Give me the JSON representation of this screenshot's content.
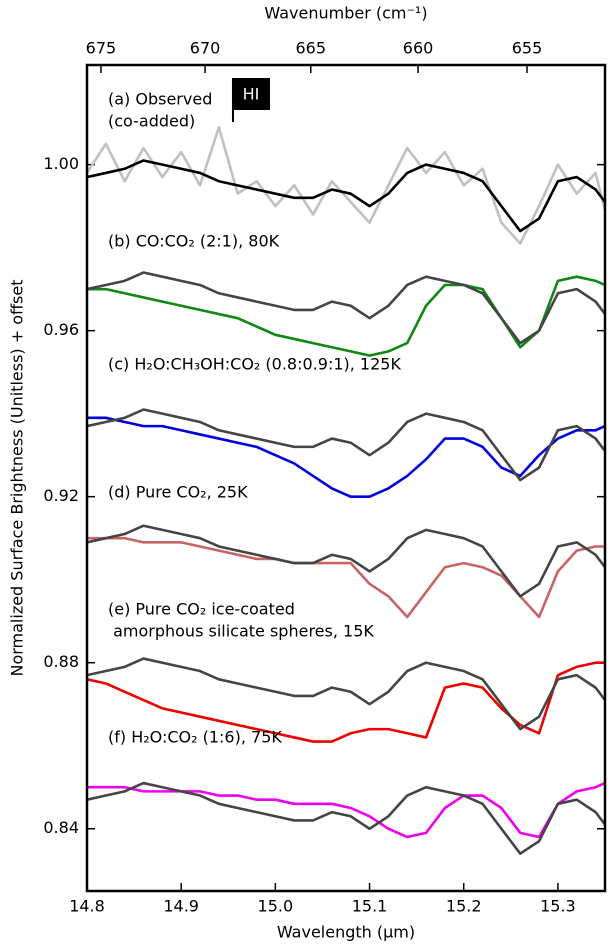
{
  "chart_data": {
    "type": "line",
    "xlabel": "Wavelength (μm)",
    "ylabel": "Normalized Surface Brightness (Unitless) + offset",
    "x2label": "Wavenumber (cm⁻¹)",
    "x2_scale": "reciprocal",
    "xlim": [
      14.8,
      15.35
    ],
    "ylim": [
      0.825,
      1.024
    ],
    "xticks": [
      14.8,
      14.9,
      {
        "value": 15,
        "label": "15.0"
      },
      15.1,
      15.2,
      15.3
    ],
    "x2ticks": [
      675,
      670,
      665,
      660,
      655
    ],
    "yticks": [
      0.84,
      0.88,
      0.92,
      0.96,
      {
        "value": 1,
        "label": "1.00"
      }
    ],
    "x": [
      14.8,
      14.82,
      14.84,
      14.86,
      14.88,
      14.9,
      14.92,
      14.94,
      14.96,
      14.98,
      15.0,
      15.02,
      15.04,
      15.06,
      15.08,
      15.1,
      15.12,
      15.14,
      15.16,
      15.18,
      15.2,
      15.22,
      15.24,
      15.26,
      15.28,
      15.3,
      15.32,
      15.34,
      15.35
    ],
    "series": [
      {
        "color": "#c0c0c0",
        "values": [
          0.998,
          1.005,
          0.996,
          1.004,
          0.997,
          1.003,
          0.995,
          1.009,
          0.993,
          0.996,
          0.99,
          0.995,
          0.988,
          0.996,
          0.991,
          0.986,
          0.995,
          1.004,
          0.998,
          1.003,
          0.995,
          0.999,
          0.986,
          0.981,
          0.99,
          1.0,
          0.993,
          0.998,
          0.989
        ]
      },
      {
        "color": "#000000",
        "values": [
          0.997,
          0.998,
          0.999,
          1.001,
          1.0,
          0.999,
          0.998,
          0.996,
          0.995,
          0.994,
          0.993,
          0.992,
          0.992,
          0.994,
          0.993,
          0.99,
          0.993,
          0.998,
          1.0,
          0.999,
          0.998,
          0.996,
          0.99,
          0.984,
          0.987,
          0.996,
          0.997,
          0.994,
          0.991
        ]
      },
      {
        "color": "#118811",
        "values": [
          0.97,
          0.97,
          0.969,
          0.968,
          0.967,
          0.966,
          0.965,
          0.964,
          0.963,
          0.961,
          0.959,
          0.958,
          0.957,
          0.956,
          0.955,
          0.954,
          0.955,
          0.957,
          0.966,
          0.971,
          0.971,
          0.97,
          0.963,
          0.956,
          0.96,
          0.972,
          0.973,
          0.972,
          0.971
        ]
      },
      {
        "color": "#454545",
        "values": [
          0.97,
          0.971,
          0.972,
          0.974,
          0.973,
          0.972,
          0.971,
          0.969,
          0.968,
          0.967,
          0.966,
          0.965,
          0.965,
          0.967,
          0.966,
          0.963,
          0.966,
          0.971,
          0.973,
          0.972,
          0.971,
          0.969,
          0.963,
          0.957,
          0.96,
          0.969,
          0.97,
          0.967,
          0.964
        ]
      },
      {
        "color": "#0000dd",
        "values": [
          0.939,
          0.939,
          0.938,
          0.937,
          0.937,
          0.936,
          0.935,
          0.934,
          0.933,
          0.932,
          0.93,
          0.928,
          0.925,
          0.922,
          0.92,
          0.92,
          0.922,
          0.925,
          0.929,
          0.934,
          0.934,
          0.932,
          0.927,
          0.925,
          0.93,
          0.934,
          0.936,
          0.936,
          0.937
        ]
      },
      {
        "color": "#454545",
        "values": [
          0.937,
          0.938,
          0.939,
          0.941,
          0.94,
          0.939,
          0.938,
          0.936,
          0.935,
          0.934,
          0.933,
          0.932,
          0.932,
          0.934,
          0.933,
          0.93,
          0.933,
          0.938,
          0.94,
          0.939,
          0.938,
          0.936,
          0.93,
          0.924,
          0.927,
          0.936,
          0.937,
          0.934,
          0.931
        ]
      },
      {
        "color": "#c86464",
        "values": [
          0.91,
          0.91,
          0.91,
          0.909,
          0.909,
          0.909,
          0.908,
          0.907,
          0.906,
          0.905,
          0.905,
          0.904,
          0.904,
          0.904,
          0.904,
          0.899,
          0.896,
          0.891,
          0.897,
          0.903,
          0.904,
          0.903,
          0.901,
          0.896,
          0.891,
          0.902,
          0.907,
          0.908,
          0.908
        ]
      },
      {
        "color": "#454545",
        "values": [
          0.909,
          0.91,
          0.911,
          0.913,
          0.912,
          0.911,
          0.91,
          0.908,
          0.907,
          0.906,
          0.905,
          0.904,
          0.904,
          0.906,
          0.905,
          0.902,
          0.905,
          0.91,
          0.912,
          0.911,
          0.91,
          0.908,
          0.902,
          0.896,
          0.899,
          0.908,
          0.909,
          0.906,
          0.903
        ]
      },
      {
        "color": "#ee0000",
        "values": [
          0.876,
          0.875,
          0.873,
          0.871,
          0.869,
          0.868,
          0.867,
          0.866,
          0.865,
          0.864,
          0.863,
          0.862,
          0.861,
          0.861,
          0.863,
          0.864,
          0.864,
          0.863,
          0.862,
          0.874,
          0.875,
          0.874,
          0.869,
          0.865,
          0.863,
          0.877,
          0.879,
          0.88,
          0.88
        ]
      },
      {
        "color": "#454545",
        "values": [
          0.877,
          0.878,
          0.879,
          0.881,
          0.88,
          0.879,
          0.878,
          0.876,
          0.875,
          0.874,
          0.873,
          0.872,
          0.872,
          0.874,
          0.873,
          0.87,
          0.873,
          0.878,
          0.88,
          0.879,
          0.878,
          0.876,
          0.87,
          0.864,
          0.867,
          0.876,
          0.877,
          0.874,
          0.871
        ]
      },
      {
        "color": "#ee00ee",
        "values": [
          0.85,
          0.85,
          0.85,
          0.849,
          0.849,
          0.849,
          0.849,
          0.848,
          0.848,
          0.847,
          0.847,
          0.846,
          0.846,
          0.846,
          0.845,
          0.843,
          0.84,
          0.838,
          0.839,
          0.845,
          0.848,
          0.848,
          0.845,
          0.839,
          0.838,
          0.846,
          0.849,
          0.85,
          0.851
        ]
      },
      {
        "color": "#454545",
        "values": [
          0.847,
          0.848,
          0.849,
          0.851,
          0.85,
          0.849,
          0.848,
          0.846,
          0.845,
          0.844,
          0.843,
          0.842,
          0.842,
          0.844,
          0.843,
          0.84,
          0.843,
          0.848,
          0.85,
          0.849,
          0.848,
          0.846,
          0.84,
          0.834,
          0.837,
          0.846,
          0.847,
          0.844,
          0.841
        ]
      }
    ],
    "annotations": [
      {
        "text": [
          "(a) Observed",
          "(co-added)"
        ],
        "color": "#000000"
      },
      {
        "text": [
          "(b) CO:CO₂ (2:1), 80K"
        ],
        "color": "#118811"
      },
      {
        "text": [
          "(c) H₂O:CH₃OH:CO₂ (0.8:0.9:1), 125K"
        ],
        "color": "#0000dd"
      },
      {
        "text": [
          "(d) Pure CO₂, 25K"
        ],
        "color": "#c86464"
      },
      {
        "text": [
          "(e) Pure CO₂ ice-coated",
          " amorphous silicate spheres, 15K"
        ],
        "color": "#ee0000"
      },
      {
        "text": [
          "(f) H₂O:CO₂ (1:6), 75K"
        ],
        "color": "#ee00ee"
      }
    ],
    "marker": {
      "label": "HI",
      "x": 14.955
    }
  }
}
